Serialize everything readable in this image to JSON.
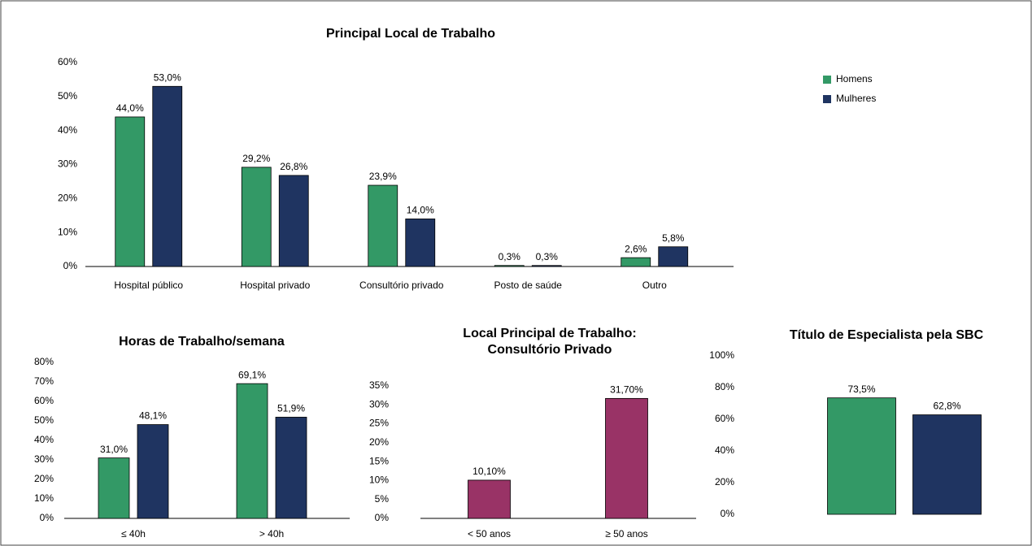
{
  "chart_data": [
    {
      "type": "bar",
      "title": [
        "Principal Local de Trabalho"
      ],
      "categories": [
        "Hospital público",
        "Hospital privado",
        "Consultório privado",
        "Posto de saúde",
        "Outro"
      ],
      "series": [
        {
          "name": "Homens",
          "color": "#339966",
          "values": [
            44.0,
            29.2,
            23.9,
            0.3,
            2.6
          ],
          "value_labels": [
            "44,0%",
            "29,2%",
            "23,9%",
            "0,3%",
            "2,6%"
          ]
        },
        {
          "name": "Mulheres",
          "color": "#1f3461",
          "values": [
            53.0,
            26.8,
            14.0,
            0.3,
            5.8
          ],
          "value_labels": [
            "53,0%",
            "26,8%",
            "14,0%",
            "0,3%",
            "5,8%"
          ]
        }
      ],
      "ylim": [
        0,
        60
      ],
      "yticks": [
        {
          "value": 0,
          "label": "0%"
        },
        {
          "value": 10,
          "label": "10%"
        },
        {
          "value": 20,
          "label": "20%"
        },
        {
          "value": 30,
          "label": "30%"
        },
        {
          "value": 40,
          "label": "40%"
        },
        {
          "value": 50,
          "label": "50%"
        },
        {
          "value": 60,
          "label": "60%"
        }
      ],
      "legend": "right"
    },
    {
      "type": "bar",
      "title": [
        "Horas de Trabalho/semana"
      ],
      "categories": [
        "≤ 40h",
        "> 40h"
      ],
      "series": [
        {
          "name": "Homens",
          "color": "#339966",
          "values": [
            31.0,
            69.1
          ],
          "value_labels": [
            "31,0%",
            "69,1%"
          ]
        },
        {
          "name": "Mulheres",
          "color": "#1f3461",
          "values": [
            48.1,
            51.9
          ],
          "value_labels": [
            "48,1%",
            "51,9%"
          ]
        }
      ],
      "ylim": [
        0,
        80
      ],
      "yticks": [
        {
          "value": 0,
          "label": "0%"
        },
        {
          "value": 10,
          "label": "10%"
        },
        {
          "value": 20,
          "label": "20%"
        },
        {
          "value": 30,
          "label": "30%"
        },
        {
          "value": 40,
          "label": "40%"
        },
        {
          "value": 50,
          "label": "50%"
        },
        {
          "value": 60,
          "label": "60%"
        },
        {
          "value": 70,
          "label": "70%"
        },
        {
          "value": 80,
          "label": "80%"
        }
      ]
    },
    {
      "type": "bar",
      "title": [
        "Local Principal de Trabalho:",
        "Consultório Privado"
      ],
      "categories": [
        "< 50 anos",
        "≥ 50 anos"
      ],
      "values": [
        10.1,
        31.7
      ],
      "value_labels": [
        "10,10%",
        "31,70%"
      ],
      "colors": [
        "#993366",
        "#993366"
      ],
      "ylim": [
        0,
        35
      ],
      "yticks": [
        {
          "value": 0,
          "label": "0%"
        },
        {
          "value": 5,
          "label": "5%"
        },
        {
          "value": 10,
          "label": "10%"
        },
        {
          "value": 15,
          "label": "15%"
        },
        {
          "value": 20,
          "label": "20%"
        },
        {
          "value": 25,
          "label": "25%"
        },
        {
          "value": 30,
          "label": "30%"
        },
        {
          "value": 35,
          "label": "35%"
        }
      ]
    },
    {
      "type": "bar",
      "title": [
        "Título de Especialista pela SBC"
      ],
      "categories": [
        null,
        null
      ],
      "values": [
        73.5,
        62.8
      ],
      "value_labels": [
        "73,5%",
        "62,8%"
      ],
      "colors": [
        "#339966",
        "#1f3461"
      ],
      "ylim": [
        0,
        100
      ],
      "yticks": [
        {
          "value": 0,
          "label": "0%"
        },
        {
          "value": 20,
          "label": "20%"
        },
        {
          "value": 40,
          "label": "40%"
        },
        {
          "value": 60,
          "label": "60%"
        },
        {
          "value": 80,
          "label": "80%"
        },
        {
          "value": 100,
          "label": "100%"
        }
      ]
    }
  ]
}
